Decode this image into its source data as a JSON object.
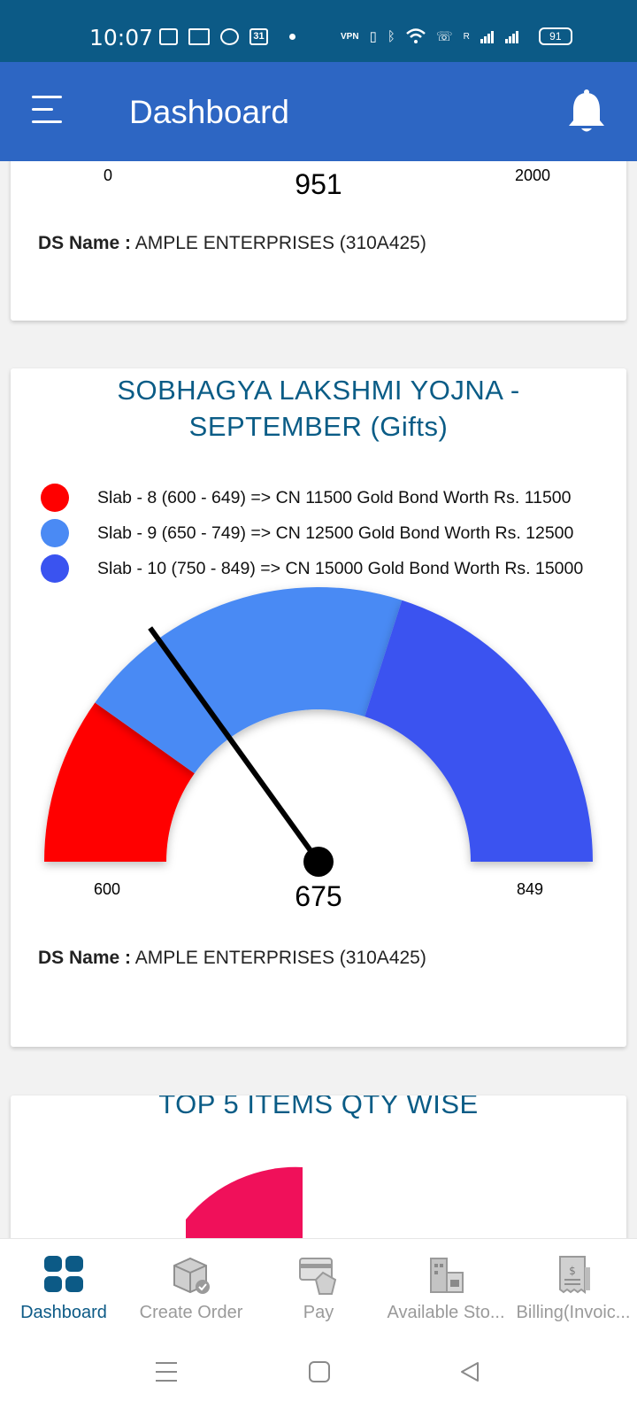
{
  "status_bar": {
    "time": "10:07",
    "calendar_day": "31",
    "battery": "91",
    "vpn": "VPN",
    "signal_label": "R"
  },
  "app_bar": {
    "title": "Dashboard"
  },
  "card_top": {
    "gauge_min": "0",
    "gauge_max": "2000",
    "gauge_value": "951",
    "ds_label": "DS Name :",
    "ds_value": "AMPLE ENTERPRISES (310A425)"
  },
  "card_mid": {
    "title_line1": "SOBHAGYA LAKSHMI YOJNA -",
    "title_line2": "SEPTEMBER (Gifts)",
    "legend": [
      {
        "label": "Slab - 8 (600 - 649) => CN 11500 Gold Bond  Worth Rs. 11500",
        "color": "#ff0000"
      },
      {
        "label": "Slab - 9 (650 - 749) => CN 12500 Gold Bond  Worth Rs. 12500",
        "color": "#4a8af4"
      },
      {
        "label": "Slab - 10 (750 - 849) => CN 15000 Gold Bond  Worth Rs. 15000",
        "color": "#3a53f0"
      }
    ],
    "gauge": {
      "min": 600,
      "max": 849,
      "value": 675,
      "segments": [
        [
          600,
          649
        ],
        [
          649,
          749
        ],
        [
          749,
          849
        ]
      ]
    },
    "gauge_min": "600",
    "gauge_max": "849",
    "gauge_value": "675",
    "ds_label": "DS Name :",
    "ds_value": "AMPLE ENTERPRISES (310A425)"
  },
  "card_bot": {
    "title": "TOP 5 ITEMS QTY WISE"
  },
  "bottom_nav": [
    {
      "label": "Dashboard",
      "icon": "dashboard-icon",
      "active": true
    },
    {
      "label": "Create Order",
      "icon": "create-order-icon",
      "active": false
    },
    {
      "label": "Pay",
      "icon": "pay-icon",
      "active": false
    },
    {
      "label": "Available Sto...",
      "icon": "warehouse-icon",
      "active": false
    },
    {
      "label": "Billing(Invoic...",
      "icon": "invoice-icon",
      "active": false
    }
  ],
  "colors": {
    "primary": "#2d66c3",
    "status": "#0c5a86",
    "title": "#0a5c86",
    "pink": "#f0105a"
  }
}
